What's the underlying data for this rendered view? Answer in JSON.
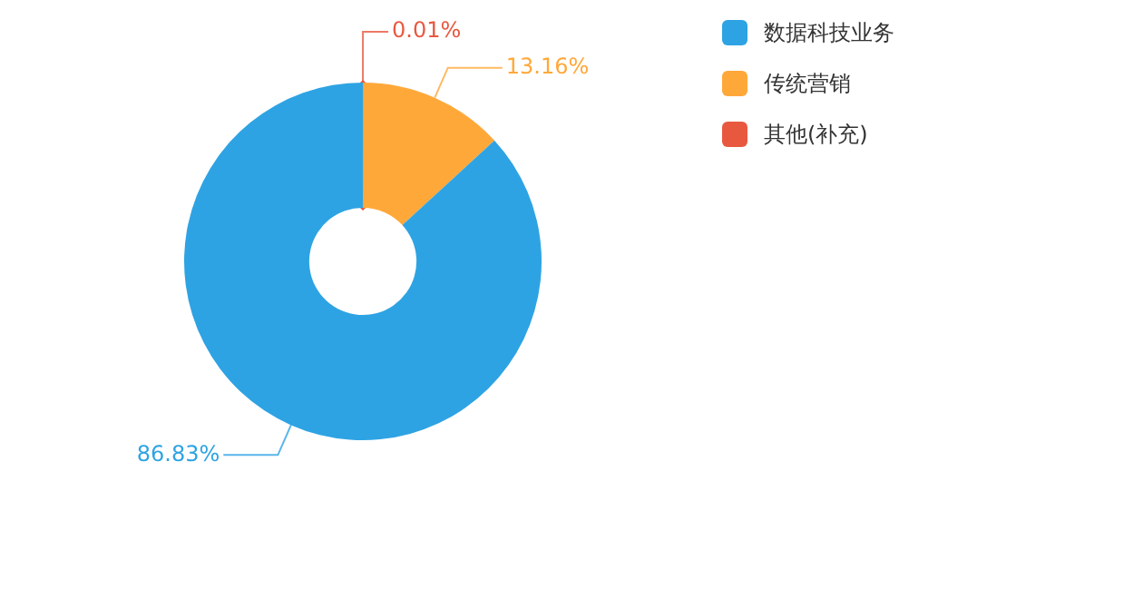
{
  "chart_data": {
    "type": "donut",
    "categories": [
      "数据科技业务",
      "传统营销",
      "其他(补充)"
    ],
    "values": [
      86.83,
      13.16,
      0.01
    ],
    "colors": [
      "#2ea3e3",
      "#ffa83a",
      "#e8583f"
    ],
    "value_labels": [
      "86.83%",
      "13.16%",
      "0.01%"
    ],
    "legend": "top right"
  }
}
